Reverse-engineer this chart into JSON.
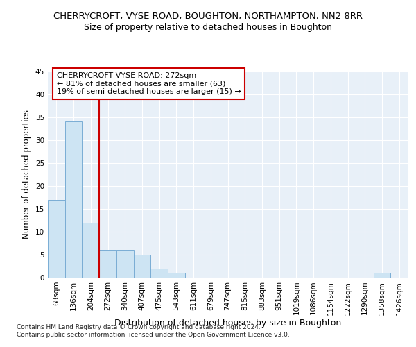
{
  "title": "CHERRYCROFT, VYSE ROAD, BOUGHTON, NORTHAMPTON, NN2 8RR",
  "subtitle": "Size of property relative to detached houses in Boughton",
  "xlabel": "Distribution of detached houses by size in Boughton",
  "ylabel": "Number of detached properties",
  "bar_values": [
    17,
    34,
    12,
    6,
    6,
    5,
    2,
    1,
    0,
    0,
    0,
    0,
    0,
    0,
    0,
    0,
    0,
    0,
    0,
    1,
    0
  ],
  "bin_labels": [
    "68sqm",
    "136sqm",
    "204sqm",
    "272sqm",
    "340sqm",
    "407sqm",
    "475sqm",
    "543sqm",
    "611sqm",
    "679sqm",
    "747sqm",
    "815sqm",
    "883sqm",
    "951sqm",
    "1019sqm",
    "1086sqm",
    "1154sqm",
    "1222sqm",
    "1290sqm",
    "1358sqm",
    "1426sqm"
  ],
  "bar_color": "#cde4f3",
  "bar_edge_color": "#7aadd4",
  "vline_x": 2.5,
  "vline_color": "#cc0000",
  "annotation_box_color": "#cc0000",
  "annotation_text": "CHERRYCROFT VYSE ROAD: 272sqm\n← 81% of detached houses are smaller (63)\n19% of semi-detached houses are larger (15) →",
  "ylim": [
    0,
    45
  ],
  "yticks": [
    0,
    5,
    10,
    15,
    20,
    25,
    30,
    35,
    40,
    45
  ],
  "background_color": "#e8f0f8",
  "grid_color": "#ffffff",
  "footer": "Contains HM Land Registry data © Crown copyright and database right 2024.\nContains public sector information licensed under the Open Government Licence v3.0.",
  "title_fontsize": 9.5,
  "subtitle_fontsize": 9,
  "xlabel_fontsize": 9,
  "ylabel_fontsize": 8.5,
  "tick_fontsize": 7.5,
  "annotation_fontsize": 8,
  "footer_fontsize": 6.5
}
